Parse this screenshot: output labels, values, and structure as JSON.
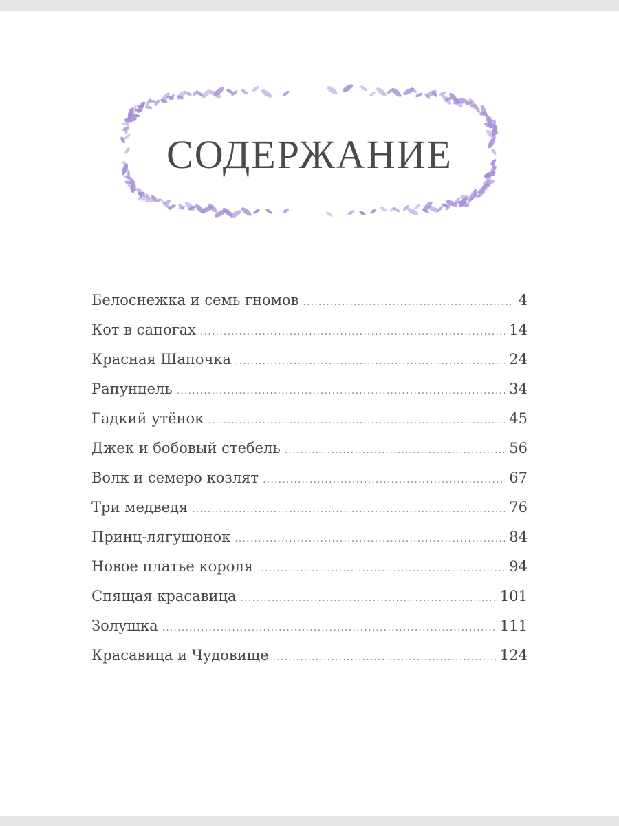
{
  "page": {
    "title": "СОДЕРЖАНИЕ",
    "wreath_color": "#a58fd6",
    "text_color": "#474747"
  },
  "toc": [
    {
      "title": "Белоснежка и семь гномов",
      "page": "4"
    },
    {
      "title": "Кот в сапогах",
      "page": "14"
    },
    {
      "title": "Красная Шапочка",
      "page": "24"
    },
    {
      "title": "Рапунцель",
      "page": "34"
    },
    {
      "title": "Гадкий утёнок",
      "page": "45"
    },
    {
      "title": "Джек и бобовый стебель",
      "page": "56"
    },
    {
      "title": "Волк и семеро козлят",
      "page": "67"
    },
    {
      "title": "Три медведя",
      "page": "76"
    },
    {
      "title": "Принц-лягушонок",
      "page": "84"
    },
    {
      "title": "Новое платье короля",
      "page": "94"
    },
    {
      "title": "Спящая красавица",
      "page": "101"
    },
    {
      "title": "Золушка",
      "page": "111"
    },
    {
      "title": "Красавица и Чудовище",
      "page": "124"
    }
  ]
}
